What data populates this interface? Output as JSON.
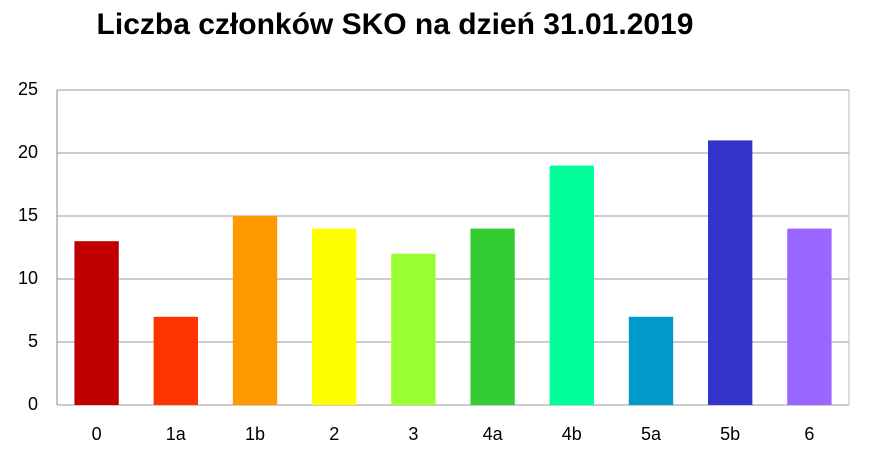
{
  "chart_data": {
    "type": "bar",
    "title": "Liczba członków SKO na dzień 31.01.2019",
    "categories": [
      "0",
      "1a",
      "1b",
      "2",
      "3",
      "4a",
      "4b",
      "5a",
      "5b",
      "6"
    ],
    "values": [
      13,
      7,
      15,
      14,
      12,
      14,
      19,
      7,
      21,
      14
    ],
    "colors": [
      "#c00000",
      "#ff3300",
      "#ff9900",
      "#ffff00",
      "#99ff33",
      "#33cc33",
      "#00ff99",
      "#0099cc",
      "#3333cc",
      "#9966ff"
    ],
    "ylim": [
      0,
      25
    ],
    "yticks": [
      0,
      5,
      10,
      15,
      20,
      25
    ],
    "grid": true
  }
}
